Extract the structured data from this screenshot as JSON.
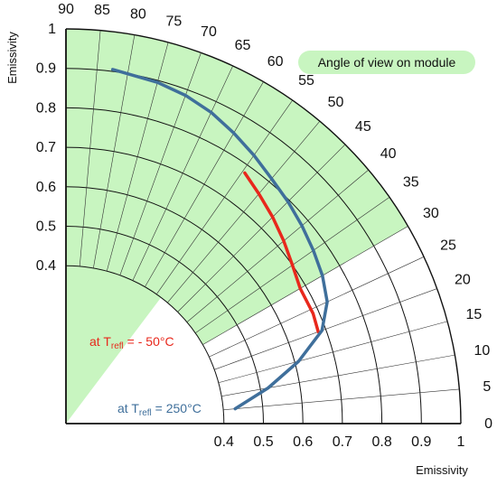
{
  "chart_data": {
    "type": "polar-line",
    "xlabel": "Emissivity",
    "ylabel": "Emissivity",
    "radial_ticks_x": [
      "0.4",
      "0.5",
      "0.6",
      "0.7",
      "0.8",
      "0.9",
      "1"
    ],
    "radial_ticks_y": [
      "0.4",
      "0.5",
      "0.6",
      "0.7",
      "0.8",
      "0.9",
      "1"
    ],
    "radial_range": [
      0,
      1
    ],
    "radial_grid": [
      0.4,
      0.5,
      0.6,
      0.7,
      0.8,
      0.9,
      1.0
    ],
    "angle_unit": "degrees",
    "angle_ticks": [
      "0",
      "5",
      "10",
      "15",
      "20",
      "25",
      "30",
      "35",
      "40",
      "45",
      "50",
      "55",
      "60",
      "65",
      "70",
      "75",
      "80",
      "85",
      "90"
    ],
    "angle_grid_step": 5,
    "shaded_region": {
      "label": "Angle of view on module",
      "angle_range": [
        30,
        90
      ],
      "color": "#c8f5c0"
    },
    "series": [
      {
        "annotation_parts": [
          "at T",
          "refl",
          " = - 50°C"
        ],
        "color": "#e8281c",
        "points": [
          {
            "angle": 20.0,
            "emissivity": 0.68
          },
          {
            "angle": 24.0,
            "emissivity": 0.685
          },
          {
            "angle": 30.0,
            "emissivity": 0.685
          },
          {
            "angle": 35.0,
            "emissivity": 0.7
          },
          {
            "angle": 40.0,
            "emissivity": 0.72
          },
          {
            "angle": 45.0,
            "emissivity": 0.74
          },
          {
            "angle": 50.0,
            "emissivity": 0.76
          },
          {
            "angle": 54.5,
            "emissivity": 0.78
          }
        ]
      },
      {
        "annotation_parts": [
          "at T",
          "refl",
          " = 250°C"
        ],
        "color": "#3f6f9b",
        "points": [
          {
            "angle": 5.0,
            "emissivity": 0.43
          },
          {
            "angle": 10.0,
            "emissivity": 0.52
          },
          {
            "angle": 15.0,
            "emissivity": 0.61
          },
          {
            "angle": 20.0,
            "emissivity": 0.69
          },
          {
            "angle": 25.0,
            "emissivity": 0.73
          },
          {
            "angle": 30.0,
            "emissivity": 0.75
          },
          {
            "angle": 35.0,
            "emissivity": 0.765
          },
          {
            "angle": 40.0,
            "emissivity": 0.78
          },
          {
            "angle": 45.0,
            "emissivity": 0.795
          },
          {
            "angle": 50.0,
            "emissivity": 0.81
          },
          {
            "angle": 55.0,
            "emissivity": 0.83
          },
          {
            "angle": 60.0,
            "emissivity": 0.85
          },
          {
            "angle": 65.0,
            "emissivity": 0.87
          },
          {
            "angle": 70.0,
            "emissivity": 0.885
          },
          {
            "angle": 75.0,
            "emissivity": 0.895
          },
          {
            "angle": 80.0,
            "emissivity": 0.9
          },
          {
            "angle": 82.5,
            "emissivity": 0.905
          }
        ]
      }
    ]
  }
}
